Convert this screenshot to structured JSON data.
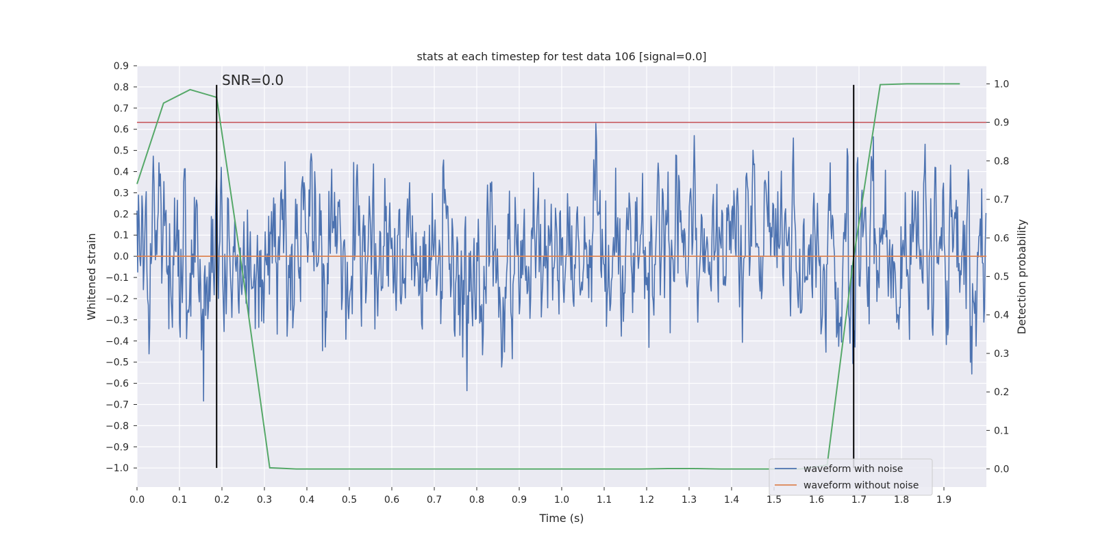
{
  "chart_data": {
    "type": "line",
    "title": "stats at each timestep for test data 106 [signal=0.0]",
    "xlabel": "Time (s)",
    "ylabel": "Whitened strain",
    "y2label": "Detection probability",
    "xlim": [
      0.0,
      2.0
    ],
    "ylim": [
      -1.09,
      0.9
    ],
    "y2lim": [
      -0.047,
      1.047
    ],
    "xticks": [
      "0.0",
      "0.1",
      "0.2",
      "0.3",
      "0.4",
      "0.5",
      "0.6",
      "0.7",
      "0.8",
      "0.9",
      "1.0",
      "1.1",
      "1.2",
      "1.3",
      "1.4",
      "1.5",
      "1.6",
      "1.7",
      "1.8",
      "1.9"
    ],
    "yticks": [
      "0.9",
      "0.8",
      "0.7",
      "0.6",
      "0.5",
      "0.4",
      "0.3",
      "0.2",
      "0.1",
      "0.0",
      "−0.1",
      "−0.2",
      "−0.3",
      "−0.4",
      "−0.5",
      "−0.6",
      "−0.7",
      "−0.8",
      "−0.9",
      "−1.0"
    ],
    "y2ticks": [
      "1.0",
      "0.9",
      "0.8",
      "0.7",
      "0.6",
      "0.5",
      "0.4",
      "0.3",
      "0.2",
      "0.1",
      "0.0"
    ],
    "series": [
      {
        "name": "waveform with noise",
        "axis": "left",
        "color": "#4c72b0",
        "description": "dense noise oscillating roughly between -0.8 and 0.8 across 0-2 s",
        "noise_seed": 106,
        "noise_samples": 1200,
        "noise_sigma": 0.25
      },
      {
        "name": "waveform without noise",
        "axis": "left",
        "color": "#dd8452",
        "x": [
          0.0,
          2.0
        ],
        "y": [
          0.0,
          0.0
        ]
      },
      {
        "name": "detection probability",
        "axis": "right",
        "color": "#55a868",
        "x": [
          0.0,
          0.0625,
          0.125,
          0.1875,
          0.25,
          0.3125,
          0.375,
          0.4375,
          0.5,
          0.5625,
          0.625,
          0.6875,
          0.75,
          0.8125,
          0.875,
          0.9375,
          1.0,
          1.0625,
          1.125,
          1.1875,
          1.25,
          1.3125,
          1.375,
          1.4375,
          1.5,
          1.5625,
          1.625,
          1.6875,
          1.75,
          1.8125,
          1.875,
          1.9375
        ],
        "y": [
          0.74,
          0.95,
          0.985,
          0.965,
          0.5,
          0.003,
          0.0,
          0.0,
          0.0,
          0.0,
          0.0,
          0.0,
          0.0,
          0.0,
          0.0,
          0.0,
          0.0,
          0.0,
          0.0,
          0.0,
          0.001,
          0.001,
          0.0,
          0.0,
          0.0,
          0.0,
          0.01,
          0.55,
          0.998,
          1.0,
          1.0,
          1.0
        ]
      }
    ],
    "threshold": {
      "axis": "right",
      "value": 0.9,
      "color": "#c44e52"
    },
    "vlines": [
      {
        "x": 0.1875,
        "ymin": -1.0,
        "ymax": 0.81,
        "color": "#000000"
      },
      {
        "x": 1.6875,
        "ymin": -1.0,
        "ymax": 0.81,
        "color": "#000000"
      }
    ],
    "annotation": {
      "text": "SNR=0.0",
      "x": 0.2,
      "y": 0.82
    },
    "legend": {
      "location": "lower right",
      "entries": [
        {
          "label": "waveform with noise",
          "color": "#4c72b0"
        },
        {
          "label": "waveform without noise",
          "color": "#dd8452"
        }
      ]
    }
  },
  "colors": {
    "plot_background": "#eaeaf2",
    "grid": "#ffffff",
    "text": "#262626"
  }
}
